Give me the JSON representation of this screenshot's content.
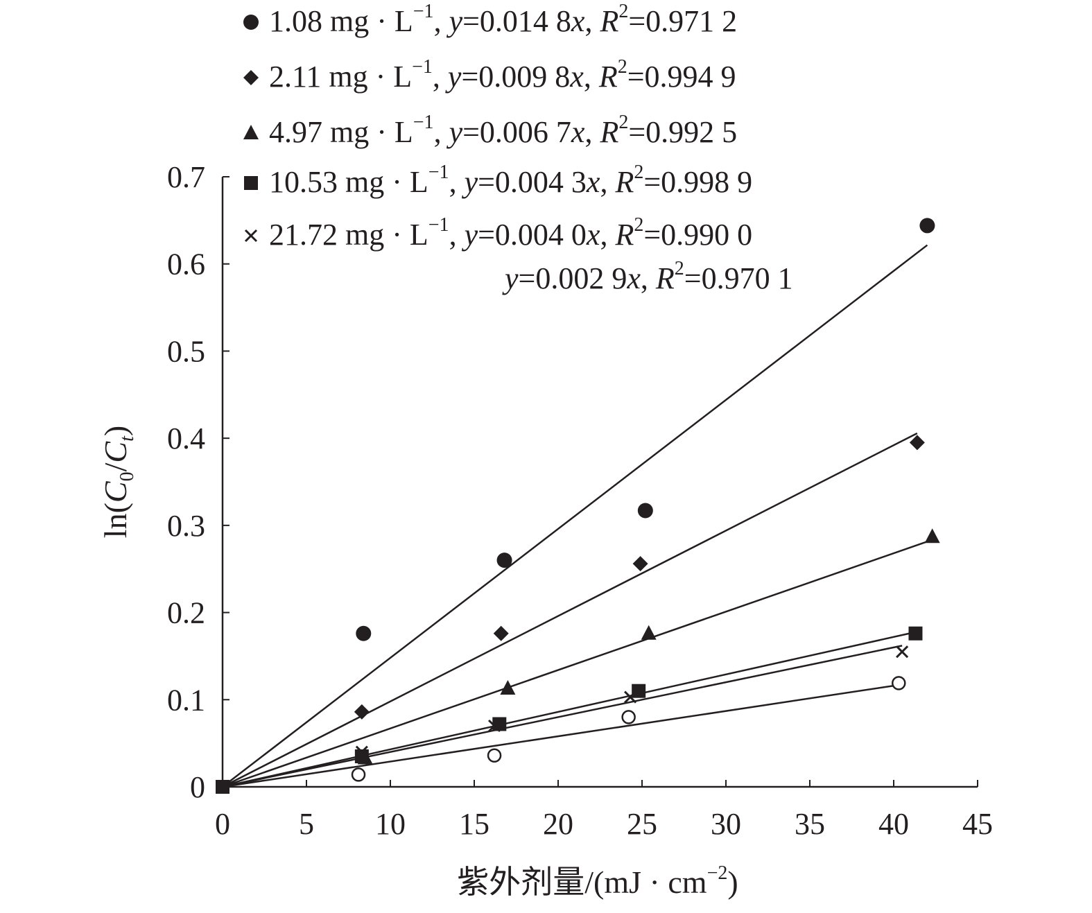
{
  "chart_data": {
    "type": "scatter",
    "xlabel": "紫外剂量/(mJ · cm",
    "xlabel_sup": "−2",
    "xlabel_close": ")",
    "ylabel_prefix": "ln(",
    "ylabel_c": "C",
    "ylabel_sub0": "0",
    "ylabel_slash": "/",
    "ylabel_sub_t": "t",
    "ylabel_close": ")",
    "xlim": [
      0,
      45
    ],
    "ylim": [
      0,
      0.7
    ],
    "x_ticks": [
      "0",
      "5",
      "10",
      "15",
      "20",
      "25",
      "30",
      "35",
      "40",
      "45"
    ],
    "y_ticks": [
      "0",
      "0.1",
      "0.2",
      "0.3",
      "0.4",
      "0.5",
      "0.6",
      "0.7"
    ],
    "grid": false,
    "legend_position": "top",
    "series": [
      {
        "name": "1.08 mg · L",
        "unit_sup": "−1",
        "eq_slope": "=0.014 8",
        "r2_value": "=0.971 2",
        "marker": "circle",
        "slope": 0.0148,
        "fit_x_end": 42,
        "x": [
          0,
          8.4,
          16.8,
          25.2,
          42.0
        ],
        "y": [
          0,
          0.176,
          0.26,
          0.317,
          0.644
        ]
      },
      {
        "name": "2.11 mg · L",
        "unit_sup": "−1",
        "eq_slope": "=0.009 8",
        "r2_value": "=0.994 9",
        "marker": "diamond",
        "slope": 0.0098,
        "fit_x_end": 41.4,
        "x": [
          0,
          8.3,
          16.6,
          24.9,
          41.4
        ],
        "y": [
          0,
          0.086,
          0.176,
          0.256,
          0.395
        ]
      },
      {
        "name": "4.97 mg · L",
        "unit_sup": "−1",
        "eq_slope": "=0.006 7",
        "r2_value": "=0.992 5",
        "marker": "triangle",
        "slope": 0.0067,
        "fit_x_end": 42.3,
        "x": [
          0,
          8.5,
          17.0,
          25.4,
          42.3
        ],
        "y": [
          0,
          0.033,
          0.113,
          0.176,
          0.287
        ]
      },
      {
        "name": "10.53 mg · L",
        "unit_sup": "−1",
        "eq_slope": "=0.004 3",
        "r2_value": "=0.998 9",
        "marker": "square",
        "slope": 0.0043,
        "fit_x_end": 41.3,
        "x": [
          0,
          8.3,
          16.5,
          24.8,
          41.3
        ],
        "y": [
          0,
          0.035,
          0.072,
          0.11,
          0.176
        ]
      },
      {
        "name": "21.72 mg · L",
        "unit_sup": "−1",
        "eq_slope": "=0.004 0",
        "r2_value": "=0.990 0",
        "marker": "cross",
        "slope": 0.004,
        "fit_x_end": 40.5,
        "x": [
          0,
          8.3,
          16.2,
          24.3,
          40.5
        ],
        "y": [
          0,
          0.04,
          0.07,
          0.103,
          0.155
        ]
      },
      {
        "name": "",
        "unit_sup": "",
        "eq_slope": "=0.002 9",
        "r2_value": "=0.970 1",
        "marker": "open-circle",
        "slope": 0.0029,
        "fit_x_end": 40.3,
        "x": [
          0,
          8.1,
          16.2,
          24.2,
          40.3
        ],
        "y": [
          0,
          0.014,
          0.036,
          0.08,
          0.119
        ]
      }
    ],
    "equation_y": "y",
    "equation_x": "x",
    "equation_r": "R",
    "equation_r_sup": "2",
    "comma": ", ",
    "colors": {
      "ink": "#231f20",
      "background": "#ffffff"
    }
  }
}
